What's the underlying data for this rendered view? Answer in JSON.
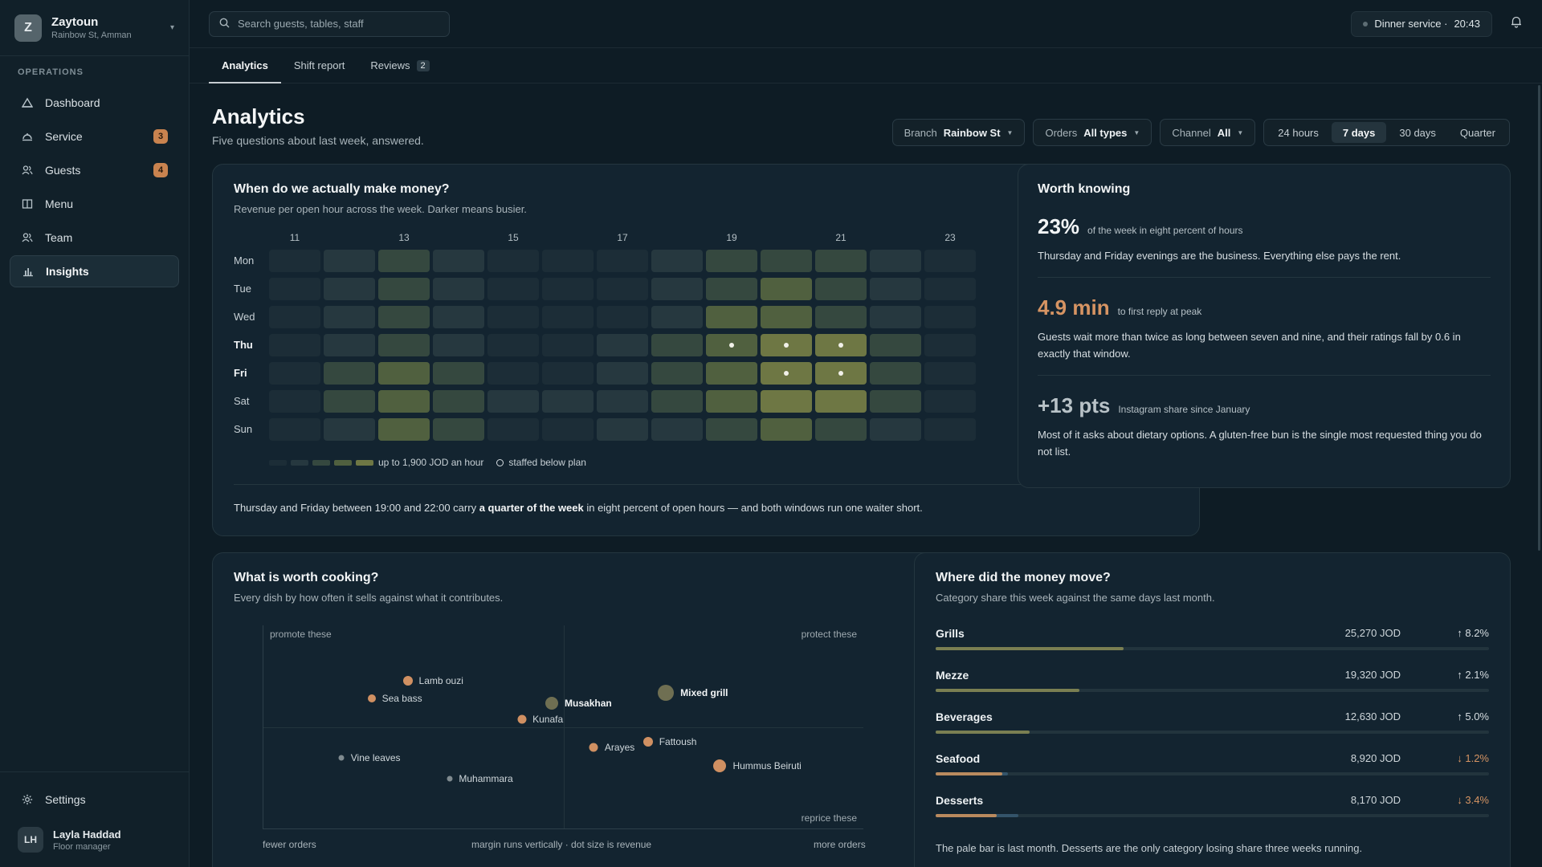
{
  "brand": {
    "initial": "Z",
    "name": "Zaytoun",
    "location": "Rainbow St, Amman"
  },
  "sidebar": {
    "section": "OPERATIONS",
    "items": [
      {
        "label": "Dashboard",
        "icon": "dashboard-icon"
      },
      {
        "label": "Service",
        "icon": "service-icon",
        "badge": "3"
      },
      {
        "label": "Guests",
        "icon": "guests-icon",
        "badge": "4"
      },
      {
        "label": "Menu",
        "icon": "menu-book-icon"
      },
      {
        "label": "Team",
        "icon": "team-icon"
      },
      {
        "label": "Insights",
        "icon": "insights-icon",
        "active": true
      }
    ],
    "settings": "Settings",
    "user": {
      "initials": "LH",
      "name": "Layla Haddad",
      "role": "Floor manager"
    }
  },
  "topbar": {
    "search_placeholder": "Search guests, tables, staff",
    "service_label": "Dinner service ·",
    "service_time": "20:43"
  },
  "tabs": [
    {
      "label": "Analytics",
      "active": true
    },
    {
      "label": "Shift report"
    },
    {
      "label": "Reviews",
      "count": "2"
    }
  ],
  "page": {
    "title": "Analytics",
    "subtitle": "Five questions about last week, answered."
  },
  "filters": {
    "branch": {
      "label": "Branch",
      "value": "Rainbow St"
    },
    "orders": {
      "label": "Orders",
      "value": "All types"
    },
    "channel": {
      "label": "Channel",
      "value": "All"
    },
    "periods": [
      "24 hours",
      "7 days",
      "30 days",
      "Quarter"
    ],
    "active_period": "7 days"
  },
  "heatmap": {
    "title": "When do we actually make money?",
    "subtitle": "Revenue per open hour across the week. Darker means busier.",
    "hour_labels": [
      "11",
      "13",
      "15",
      "17",
      "19",
      "21",
      "23"
    ],
    "hours": [
      11,
      12,
      13,
      14,
      15,
      16,
      17,
      18,
      19,
      20,
      21,
      22,
      23
    ],
    "days": [
      "Mon",
      "Tue",
      "Wed",
      "Thu",
      "Fri",
      "Sat",
      "Sun"
    ],
    "bold_days": [
      "Thu",
      "Fri"
    ],
    "levels": [
      [
        0,
        1,
        2,
        1,
        0,
        0,
        0,
        1,
        2,
        2,
        2,
        1,
        0
      ],
      [
        0,
        1,
        2,
        1,
        0,
        0,
        0,
        1,
        2,
        3,
        2,
        1,
        0
      ],
      [
        0,
        1,
        2,
        1,
        0,
        0,
        0,
        1,
        3,
        3,
        2,
        1,
        0
      ],
      [
        0,
        1,
        2,
        1,
        0,
        0,
        1,
        2,
        3,
        4,
        4,
        2,
        0
      ],
      [
        0,
        2,
        3,
        2,
        0,
        0,
        1,
        2,
        3,
        4,
        4,
        2,
        0
      ],
      [
        0,
        2,
        3,
        2,
        1,
        1,
        1,
        2,
        3,
        4,
        4,
        2,
        0
      ],
      [
        0,
        1,
        3,
        2,
        0,
        0,
        1,
        1,
        2,
        3,
        2,
        1,
        0
      ]
    ],
    "understaffed": [
      [
        3,
        8
      ],
      [
        3,
        9
      ],
      [
        3,
        10
      ],
      [
        4,
        9
      ],
      [
        4,
        10
      ]
    ],
    "legend_scale": "up to 1,900 JOD an hour",
    "legend_staff": "staffed below plan",
    "summary_pre": "Thursday and Friday between 19:00 and 22:00 carry ",
    "summary_bold": "a quarter of the week",
    "summary_post": " in eight percent of open hours — and both windows run one waiter short.",
    "colors": [
      "#1c2d37",
      "#26383f",
      "#35483f",
      "#50603f",
      "#6e7744"
    ]
  },
  "worth": {
    "title": "Worth knowing",
    "facts": [
      {
        "value": "23%",
        "label": "of the week in eight percent of hours",
        "text": "Thursday and Friday evenings are the business. Everything else pays the rent."
      },
      {
        "value": "4.9 min",
        "label": "to first reply at peak",
        "text": "Guests wait more than twice as long between seven and nine, and their ratings fall by 0.6 in exactly that window."
      },
      {
        "value": "+13 pts",
        "label": "Instagram share since January",
        "text": "Most of it asks about dietary options. A gluten-free bun is the single most requested thing you do not list."
      }
    ]
  },
  "scatter": {
    "title": "What is worth cooking?",
    "subtitle": "Every dish by how often it sells against what it contributes.",
    "quadrants": {
      "tl": "promote these",
      "tr": "protect these",
      "br": "reprice these"
    },
    "x_left": "fewer orders",
    "x_mid": "margin runs vertically · dot size is revenue",
    "x_right": "more orders",
    "points": [
      {
        "name": "Lamb ouzi",
        "x": 0.24,
        "y": 0.73,
        "size": 12,
        "color": "#d09062"
      },
      {
        "name": "Sea bass",
        "x": 0.18,
        "y": 0.64,
        "size": 10,
        "color": "#d09062"
      },
      {
        "name": "Musakhan",
        "x": 0.48,
        "y": 0.62,
        "size": 16,
        "color": "#6f6f52",
        "bold": true
      },
      {
        "name": "Mixed grill",
        "x": 0.67,
        "y": 0.67,
        "size": 20,
        "color": "#6f6f52",
        "bold": true
      },
      {
        "name": "Kunafa",
        "x": 0.43,
        "y": 0.54,
        "size": 11,
        "color": "#d09062"
      },
      {
        "name": "Fattoush",
        "x": 0.64,
        "y": 0.43,
        "size": 12,
        "color": "#d09062"
      },
      {
        "name": "Arayes",
        "x": 0.55,
        "y": 0.4,
        "size": 11,
        "color": "#d09062"
      },
      {
        "name": "Hummus Beiruti",
        "x": 0.76,
        "y": 0.31,
        "size": 16,
        "color": "#d09062"
      },
      {
        "name": "Vine leaves",
        "x": 0.13,
        "y": 0.35,
        "size": 7,
        "color": "#7f8a8f"
      },
      {
        "name": "Muhammara",
        "x": 0.31,
        "y": 0.25,
        "size": 7,
        "color": "#7f8a8f"
      }
    ]
  },
  "categories": {
    "title": "Where did the money move?",
    "subtitle": "Category share this week against the same days last month.",
    "rows": [
      {
        "name": "Grills",
        "value": "25,270 JOD",
        "change": "↑ 8.2%",
        "dir": "up",
        "share": 0.34,
        "prev": 0.31
      },
      {
        "name": "Mezze",
        "value": "19,320 JOD",
        "change": "↑ 2.1%",
        "dir": "up",
        "share": 0.26,
        "prev": 0.25
      },
      {
        "name": "Beverages",
        "value": "12,630 JOD",
        "change": "↑ 5.0%",
        "dir": "up",
        "share": 0.17,
        "prev": 0.16
      },
      {
        "name": "Seafood",
        "value": "8,920 JOD",
        "change": "↓ 1.2%",
        "dir": "down",
        "share": 0.12,
        "prev": 0.13
      },
      {
        "name": "Desserts",
        "value": "8,170 JOD",
        "change": "↓ 3.4%",
        "dir": "down",
        "share": 0.11,
        "prev": 0.15
      }
    ],
    "footnote": "The pale bar is last month. Desserts are the only category losing share three weeks running."
  }
}
